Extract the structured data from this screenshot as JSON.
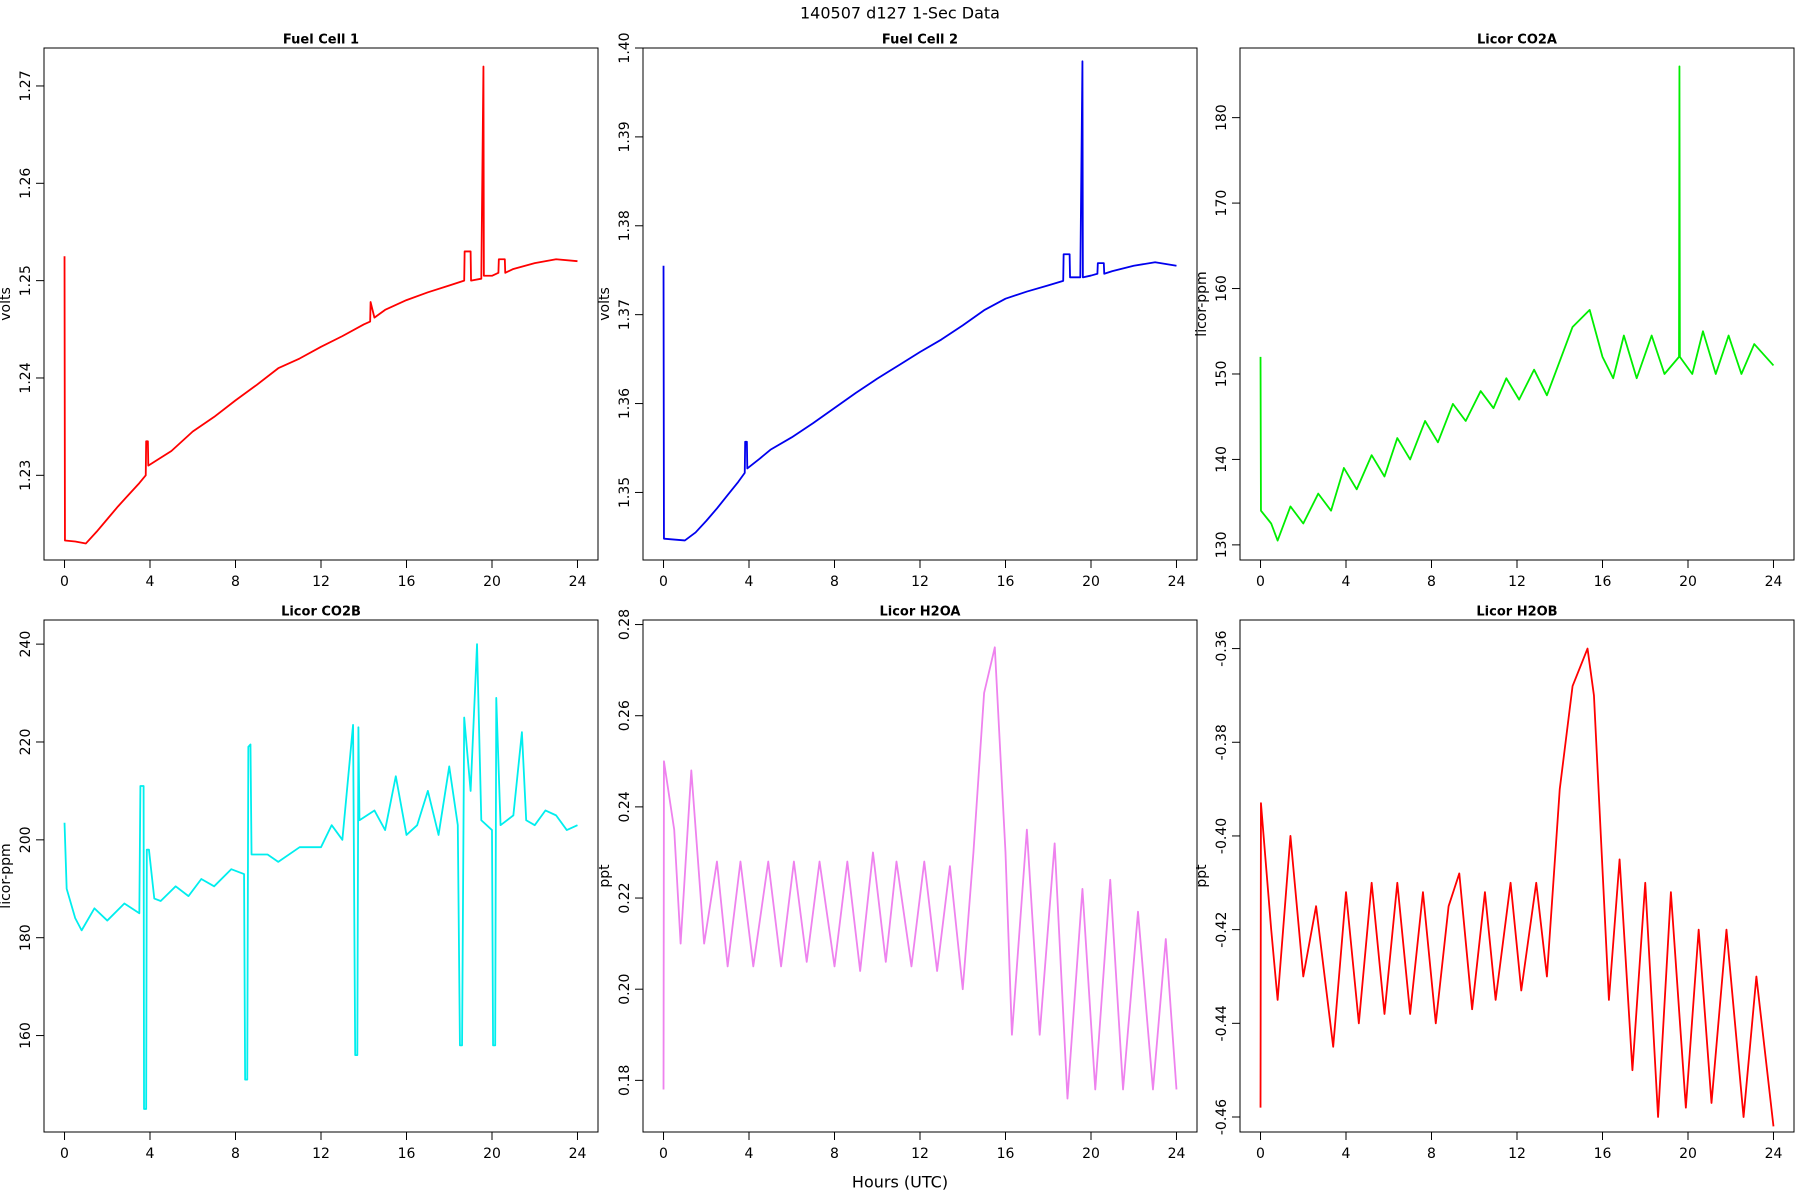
{
  "title": "140507   d127   1-Sec Data",
  "x_label": "Hours (UTC)",
  "chart_data": [
    {
      "type": "line",
      "title": "Fuel Cell 1",
      "y_label": "volts",
      "color": "#ff0000",
      "xlim": [
        -0.96,
        24.96
      ],
      "xticks": [
        0,
        4,
        8,
        12,
        16,
        20,
        24
      ],
      "ylim": [
        1.2213,
        1.2739
      ],
      "yticks": [
        1.23,
        1.24,
        1.25,
        1.26,
        1.27
      ],
      "x": [
        0,
        0.02,
        0.5,
        1,
        1.5,
        2,
        2.5,
        3,
        3.5,
        3.8,
        3.82,
        3.9,
        3.92,
        4.5,
        5,
        6,
        7,
        8,
        9,
        10,
        11,
        12,
        13,
        14,
        14.3,
        14.32,
        14.5,
        15,
        16,
        17,
        18,
        18.7,
        18.72,
        19,
        19.02,
        19.5,
        19.6,
        19.62,
        20,
        20.3,
        20.32,
        20.6,
        20.62,
        21,
        22,
        23,
        24
      ],
      "values": [
        1.2525,
        1.2233,
        1.2232,
        1.223,
        1.2242,
        1.2255,
        1.2268,
        1.228,
        1.2292,
        1.23,
        1.2335,
        1.2335,
        1.231,
        1.2318,
        1.2325,
        1.2345,
        1.236,
        1.2377,
        1.2393,
        1.241,
        1.242,
        1.2432,
        1.2443,
        1.2455,
        1.2458,
        1.2478,
        1.2462,
        1.247,
        1.248,
        1.2488,
        1.2495,
        1.25,
        1.253,
        1.253,
        1.25,
        1.2502,
        1.272,
        1.2505,
        1.2505,
        1.2508,
        1.2522,
        1.2522,
        1.2508,
        1.2512,
        1.2518,
        1.2522,
        1.252
      ]
    },
    {
      "type": "line",
      "title": "Fuel Cell 2",
      "y_label": "volts",
      "color": "#0000ee",
      "xlim": [
        -0.96,
        24.96
      ],
      "xticks": [
        0,
        4,
        8,
        12,
        16,
        20,
        24
      ],
      "ylim": [
        1.3424,
        1.4
      ],
      "yticks": [
        1.35,
        1.36,
        1.37,
        1.38,
        1.39,
        {
          "value": 1.4,
          "label": "1.40"
        }
      ],
      "x": [
        0,
        0.02,
        0.5,
        1,
        1.5,
        2,
        2.5,
        3,
        3.5,
        3.8,
        3.82,
        3.9,
        3.92,
        4.5,
        5,
        6,
        7,
        8,
        9,
        10,
        11,
        12,
        13,
        14,
        15,
        16,
        17,
        18,
        18.7,
        18.72,
        19,
        19.02,
        19.5,
        19.6,
        19.62,
        20,
        20.3,
        20.32,
        20.6,
        20.62,
        21,
        22,
        23,
        24
      ],
      "values": [
        1.3755,
        1.3448,
        1.3447,
        1.3446,
        1.3455,
        1.3468,
        1.3482,
        1.3497,
        1.3512,
        1.3522,
        1.3557,
        1.3557,
        1.3527,
        1.3538,
        1.3548,
        1.3562,
        1.3578,
        1.3595,
        1.3612,
        1.3628,
        1.3643,
        1.3658,
        1.3672,
        1.3688,
        1.3705,
        1.3718,
        1.3726,
        1.3733,
        1.3738,
        1.3768,
        1.3768,
        1.3742,
        1.3742,
        1.3985,
        1.3742,
        1.3744,
        1.3746,
        1.3758,
        1.3758,
        1.3746,
        1.3749,
        1.3755,
        1.3759,
        1.3755
      ]
    },
    {
      "type": "line",
      "title": "Licor CO2A",
      "y_label": "licor-ppm",
      "color": "#00ee00",
      "xlim": [
        -0.96,
        24.96
      ],
      "xticks": [
        0,
        4,
        8,
        12,
        16,
        20,
        24
      ],
      "ylim": [
        128.23,
        188.15
      ],
      "yticks": [
        130,
        140,
        150,
        160,
        170,
        180
      ],
      "x": [
        0,
        0.02,
        0.5,
        0.8,
        1.4,
        2,
        2.7,
        3.3,
        3.9,
        4.5,
        5.2,
        5.8,
        6.4,
        7,
        7.7,
        8.3,
        9,
        9.6,
        10.3,
        10.9,
        11.5,
        12.1,
        12.8,
        13.4,
        14,
        14.6,
        15.4,
        16,
        16.5,
        17,
        17.6,
        18.3,
        18.9,
        19.58,
        19.6,
        19.62,
        20.2,
        20.7,
        21.3,
        21.9,
        22.5,
        23.1,
        24
      ],
      "values": [
        152,
        134,
        132.5,
        130.5,
        134.5,
        132.5,
        136,
        134,
        139,
        136.5,
        140.5,
        138,
        142.5,
        140,
        144.5,
        142,
        146.5,
        144.5,
        148,
        146,
        149.5,
        147,
        150.5,
        147.5,
        151.5,
        155.5,
        157.5,
        152,
        149.5,
        154.5,
        149.5,
        154.5,
        150,
        152,
        186,
        152,
        150,
        155,
        150,
        154.5,
        150,
        153.5,
        151
      ]
    },
    {
      "type": "line",
      "title": "Licor CO2B",
      "y_label": "licor-ppm",
      "color": "#00eeee",
      "xlim": [
        -0.96,
        24.96
      ],
      "xticks": [
        0,
        4,
        8,
        12,
        16,
        20,
        24
      ],
      "ylim": [
        140.29,
        244.93
      ],
      "yticks": [
        160,
        180,
        200,
        220,
        240
      ],
      "x": [
        0,
        0.1,
        0.5,
        0.8,
        1.4,
        2,
        2.8,
        3.5,
        3.55,
        3.7,
        3.72,
        3.82,
        3.85,
        3.95,
        4.2,
        4.5,
        5.2,
        5.8,
        6.4,
        7,
        7.8,
        8.4,
        8.45,
        8.55,
        8.6,
        8.7,
        8.75,
        9.5,
        10,
        11,
        12,
        12.5,
        13,
        13.5,
        13.6,
        13.7,
        13.75,
        13.8,
        14.5,
        15,
        15.5,
        16,
        16.5,
        17,
        17.5,
        18,
        18.4,
        18.5,
        18.6,
        18.7,
        19,
        19.3,
        19.5,
        20,
        20.05,
        20.15,
        20.2,
        20.4,
        21,
        21.4,
        21.6,
        22,
        22.5,
        23,
        23.5,
        24
      ],
      "values": [
        203.5,
        190,
        184,
        181.5,
        186,
        183.5,
        187,
        185,
        211,
        211,
        145,
        145,
        198,
        198,
        188,
        187.5,
        190.5,
        188.5,
        192,
        190.5,
        194,
        193,
        151,
        151,
        219,
        219.5,
        197,
        197,
        195.5,
        198.5,
        198.5,
        203,
        200,
        223.5,
        156,
        156,
        223,
        204,
        206,
        202,
        213,
        201,
        203,
        210,
        201,
        215,
        203,
        158,
        158,
        225,
        210,
        240,
        204,
        202,
        158,
        158,
        229,
        203,
        205,
        222,
        204,
        203,
        206,
        205,
        202,
        203
      ]
    },
    {
      "type": "line",
      "title": "Licor H2OA",
      "y_label": "ppt",
      "color": "#ee82ee",
      "xlim": [
        -0.96,
        24.96
      ],
      "xticks": [
        0,
        4,
        8,
        12,
        16,
        20,
        24
      ],
      "ylim": [
        0.16867,
        0.281
      ],
      "yticks": [
        0.18,
        {
          "value": 0.2,
          "label": "0.20"
        },
        0.22,
        0.24,
        0.26,
        0.28
      ],
      "x": [
        0,
        0.02,
        0.5,
        0.8,
        1.3,
        1.9,
        2.5,
        3,
        3.6,
        4.2,
        4.9,
        5.5,
        6.1,
        6.7,
        7.3,
        8,
        8.6,
        9.2,
        9.8,
        10.4,
        10.9,
        11.6,
        12.2,
        12.8,
        13.4,
        14,
        14.5,
        15,
        15.5,
        16,
        16.3,
        17,
        17.6,
        18.3,
        18.9,
        19.6,
        20.2,
        20.9,
        21.5,
        22.2,
        22.9,
        23.5,
        24
      ],
      "values": [
        0.178,
        0.25,
        0.235,
        0.21,
        0.248,
        0.21,
        0.228,
        0.205,
        0.228,
        0.205,
        0.228,
        0.205,
        0.228,
        0.206,
        0.228,
        0.205,
        0.228,
        0.204,
        0.23,
        0.206,
        0.228,
        0.205,
        0.228,
        0.204,
        0.227,
        0.2,
        0.23,
        0.265,
        0.275,
        0.23,
        0.19,
        0.235,
        0.19,
        0.232,
        0.176,
        0.222,
        0.178,
        0.224,
        0.178,
        0.217,
        0.178,
        0.211,
        0.178
      ]
    },
    {
      "type": "line",
      "title": "Licor H2OB",
      "y_label": "ppt",
      "color": "#ff0000",
      "xlim": [
        -0.96,
        24.96
      ],
      "xticks": [
        0,
        4,
        8,
        12,
        16,
        20,
        24
      ],
      "ylim": [
        -0.4632,
        -0.3539
      ],
      "yticks": [
        -0.46,
        -0.44,
        -0.42,
        {
          "value": -0.4,
          "label": "-0.40"
        },
        -0.38,
        -0.36
      ],
      "x": [
        0,
        0.02,
        0.5,
        0.8,
        1.4,
        2,
        2.6,
        3.4,
        4,
        4.6,
        5.2,
        5.8,
        6.4,
        7,
        7.6,
        8.2,
        8.8,
        9.3,
        9.9,
        10.5,
        11,
        11.7,
        12.2,
        12.9,
        13.4,
        14,
        14.6,
        15.3,
        15.6,
        16.3,
        16.8,
        17.4,
        18,
        18.6,
        19.2,
        19.9,
        20.5,
        21.1,
        21.8,
        22.6,
        23.2,
        24
      ],
      "values": [
        -0.458,
        -0.393,
        -0.42,
        -0.435,
        -0.4,
        -0.43,
        -0.415,
        -0.445,
        -0.412,
        -0.44,
        -0.41,
        -0.438,
        -0.41,
        -0.438,
        -0.412,
        -0.44,
        -0.415,
        -0.408,
        -0.437,
        -0.412,
        -0.435,
        -0.41,
        -0.433,
        -0.41,
        -0.43,
        -0.39,
        -0.368,
        -0.36,
        -0.37,
        -0.435,
        -0.405,
        -0.45,
        -0.41,
        -0.46,
        -0.412,
        -0.458,
        -0.42,
        -0.457,
        -0.42,
        -0.46,
        -0.43,
        -0.462
      ]
    }
  ]
}
